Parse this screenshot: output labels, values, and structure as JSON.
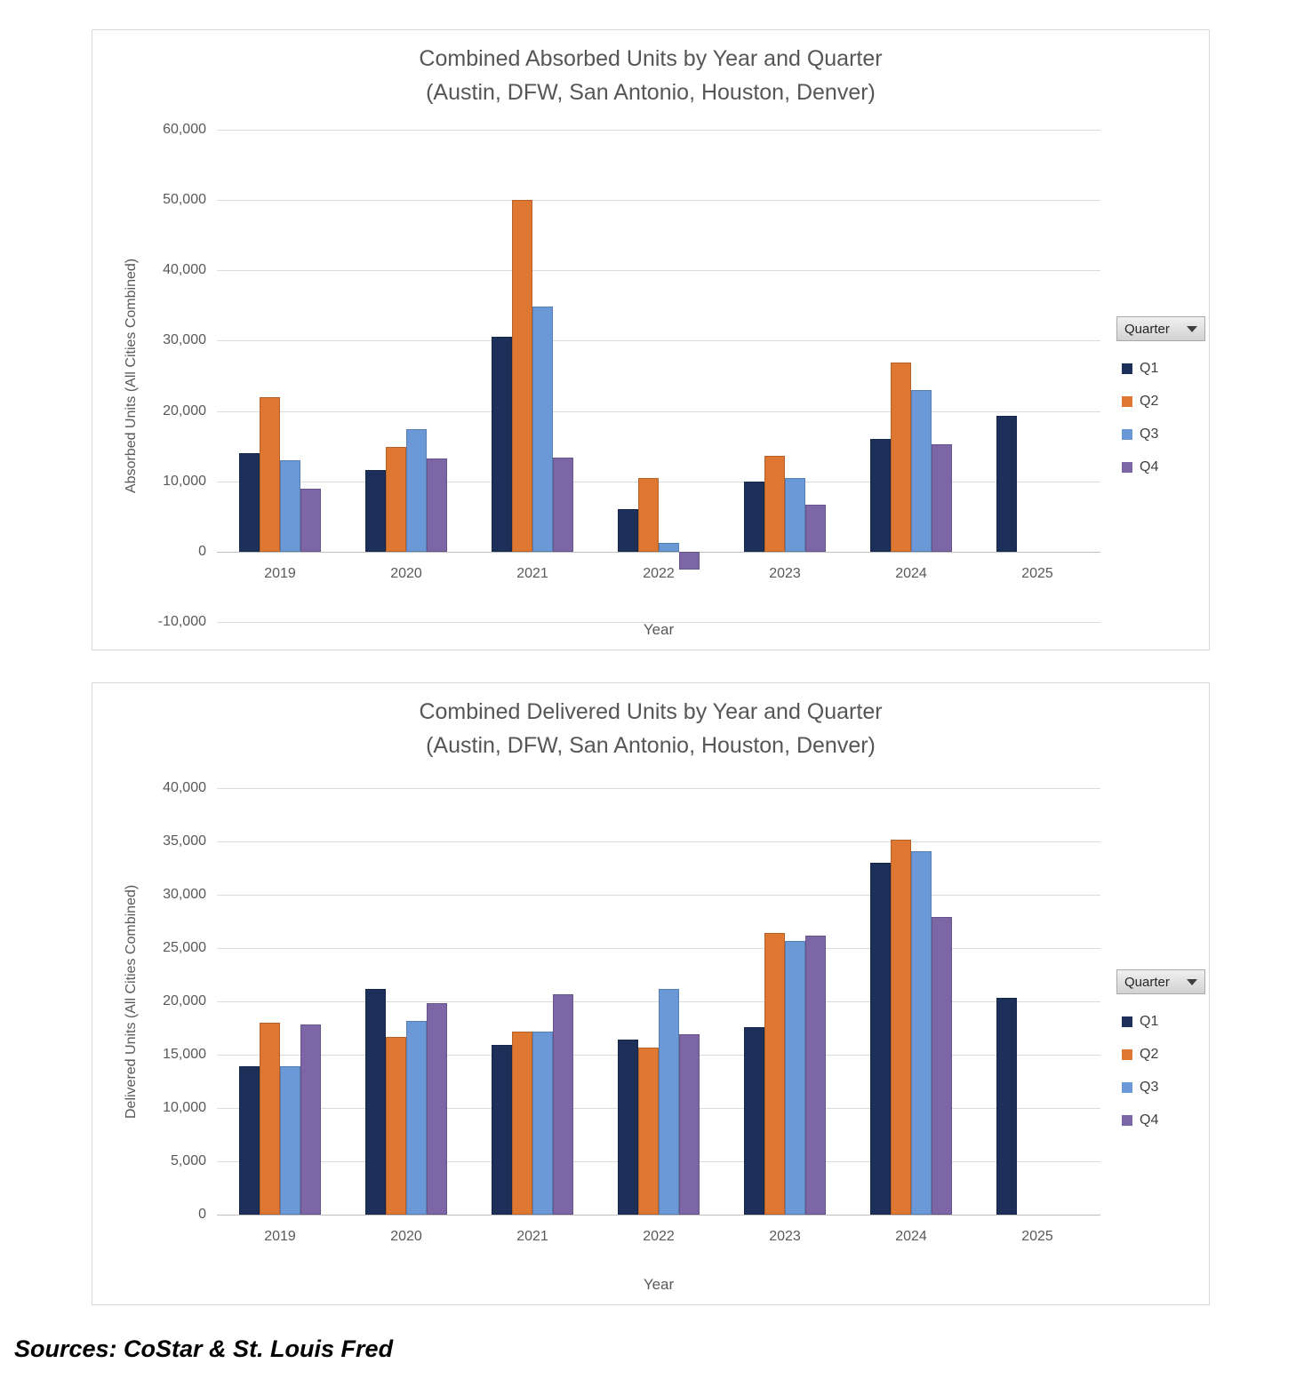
{
  "sources_note": "Sources: CoStar & St. Louis Fred",
  "colors": {
    "q1": "#1D3059",
    "q2": "#DD7732",
    "q3": "#6B99D8",
    "q4": "#7D66A6",
    "title_text": "#565656",
    "axis_text": "#595959",
    "legend_text": "#404040",
    "gridline": "#DCDCDC"
  },
  "legend": {
    "filter_label": "Quarter",
    "items": [
      {
        "label": "Q1",
        "color_key": "q1"
      },
      {
        "label": "Q2",
        "color_key": "q2"
      },
      {
        "label": "Q3",
        "color_key": "q3"
      },
      {
        "label": "Q4",
        "color_key": "q4"
      }
    ]
  },
  "chart_data": [
    {
      "id": "absorbed",
      "type": "bar",
      "title_line1": "Combined Absorbed Units by Year and Quarter",
      "title_line2": "(Austin, DFW, San Antonio, Houston, Denver)",
      "xlabel": "Year",
      "ylabel": "Absorbed Units (All Cities Combined)",
      "categories": [
        "2019",
        "2020",
        "2021",
        "2022",
        "2023",
        "2024",
        "2025"
      ],
      "series": [
        {
          "name": "Q1",
          "color_key": "q1",
          "values": [
            14000,
            11600,
            30500,
            6000,
            10000,
            16000,
            19300
          ]
        },
        {
          "name": "Q2",
          "color_key": "q2",
          "values": [
            22000,
            14900,
            50000,
            10500,
            13600,
            26900,
            null
          ]
        },
        {
          "name": "Q3",
          "color_key": "q3",
          "values": [
            13000,
            17400,
            34800,
            1300,
            10500,
            23000,
            null
          ]
        },
        {
          "name": "Q4",
          "color_key": "q4",
          "values": [
            9000,
            13200,
            13400,
            -2600,
            6700,
            15300,
            null
          ]
        }
      ],
      "ylim": [
        -10000,
        60000
      ],
      "ytick_step": 10000,
      "grid": true,
      "legend_position": "right"
    },
    {
      "id": "delivered",
      "type": "bar",
      "title_line1": "Combined Delivered Units by Year and Quarter",
      "title_line2": "(Austin, DFW, San Antonio, Houston, Denver)",
      "xlabel": "Year",
      "ylabel": "Delivered Units (All Cities Combined)",
      "categories": [
        "2019",
        "2020",
        "2021",
        "2022",
        "2023",
        "2024",
        "2025"
      ],
      "series": [
        {
          "name": "Q1",
          "color_key": "q1",
          "values": [
            13900,
            21200,
            15900,
            16400,
            17600,
            33000,
            20300
          ]
        },
        {
          "name": "Q2",
          "color_key": "q2",
          "values": [
            18000,
            16700,
            17200,
            15700,
            26400,
            35200,
            null
          ]
        },
        {
          "name": "Q3",
          "color_key": "q3",
          "values": [
            13900,
            18200,
            17200,
            21200,
            25700,
            34100,
            null
          ]
        },
        {
          "name": "Q4",
          "color_key": "q4",
          "values": [
            17800,
            19800,
            20700,
            16900,
            26200,
            27900,
            null
          ]
        }
      ],
      "ylim": [
        0,
        40000
      ],
      "ytick_step": 5000,
      "grid": true,
      "legend_position": "right"
    }
  ]
}
